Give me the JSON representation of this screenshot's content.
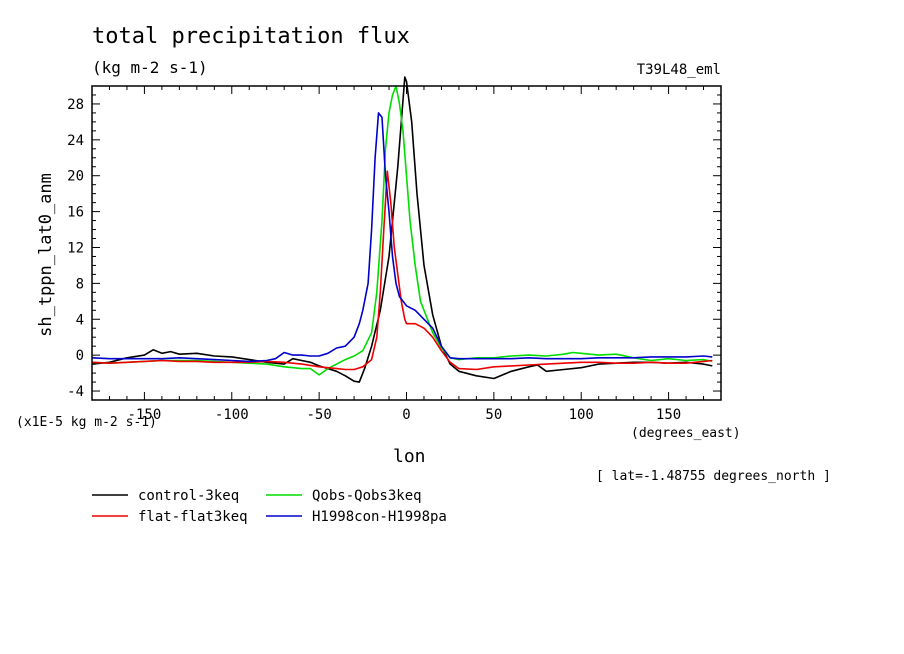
{
  "chart_data": {
    "type": "line",
    "title": "total precipitation flux",
    "subtitle": "(kg m-2 s-1)",
    "run_label": "T39L48_eml",
    "xlabel": "lon",
    "x_units": "(degrees_east)",
    "ylabel": "sh_tppn_lat0_anm",
    "y_scale_note": "(x1E-5 kg m-2 s-1)",
    "annotation": "[ lat=-1.48755 degrees_north ]",
    "xlim": [
      -180,
      180
    ],
    "ylim": [
      -5,
      30
    ],
    "xticks": [
      -150,
      -100,
      -50,
      0,
      50,
      100,
      150
    ],
    "xtick_labels": [
      "-150",
      "-100",
      "-50",
      "0",
      "50",
      "100",
      "150"
    ],
    "yticks": [
      -4,
      0,
      4,
      8,
      12,
      16,
      20,
      24,
      28
    ],
    "ytick_labels": [
      "-4",
      "0",
      "4",
      "8",
      "12",
      "16",
      "20",
      "24",
      "28"
    ],
    "grid": false,
    "legend_position": "bottom-left, below plot",
    "series": [
      {
        "name": "control-3keq",
        "color": "#000000",
        "x": [
          -180,
          -170,
          -160,
          -150,
          -145,
          -140,
          -135,
          -130,
          -120,
          -110,
          -100,
          -90,
          -80,
          -70,
          -65,
          -60,
          -55,
          -50,
          -45,
          -40,
          -35,
          -30,
          -27,
          -24,
          -20,
          -15,
          -10,
          -7,
          -5,
          -3,
          -1,
          0,
          3,
          6,
          10,
          15,
          20,
          25,
          30,
          40,
          50,
          60,
          70,
          75,
          80,
          90,
          100,
          110,
          120,
          130,
          140,
          150,
          160,
          170,
          175
        ],
        "y": [
          -1.0,
          -0.8,
          -0.3,
          0.0,
          0.6,
          0.2,
          0.4,
          0.1,
          0.2,
          -0.1,
          -0.2,
          -0.5,
          -0.8,
          -1.0,
          -0.4,
          -0.6,
          -0.8,
          -1.2,
          -1.5,
          -1.8,
          -2.3,
          -2.9,
          -3.0,
          -1.5,
          1.0,
          5.0,
          11.0,
          17.0,
          21.0,
          26.0,
          31.0,
          30.5,
          26.0,
          18.0,
          10.0,
          4.5,
          1.0,
          -1.0,
          -1.8,
          -2.3,
          -2.6,
          -1.8,
          -1.3,
          -1.1,
          -1.8,
          -1.6,
          -1.4,
          -1.0,
          -0.9,
          -0.8,
          -0.8,
          -0.9,
          -0.8,
          -1.0,
          -1.2
        ]
      },
      {
        "name": "Qobs-Qobs3keq",
        "color": "#00dd00",
        "x": [
          -180,
          -170,
          -160,
          -150,
          -140,
          -130,
          -120,
          -110,
          -100,
          -90,
          -80,
          -70,
          -60,
          -55,
          -50,
          -45,
          -40,
          -35,
          -30,
          -25,
          -20,
          -17,
          -14,
          -12,
          -10,
          -8,
          -6,
          -4,
          -2,
          0,
          2,
          5,
          8,
          12,
          15,
          20,
          25,
          30,
          40,
          50,
          60,
          70,
          80,
          90,
          95,
          100,
          110,
          120,
          130,
          140,
          150,
          160,
          170,
          175
        ],
        "y": [
          -0.8,
          -0.9,
          -0.8,
          -0.7,
          -0.6,
          -0.6,
          -0.6,
          -0.7,
          -0.8,
          -0.9,
          -1.0,
          -1.3,
          -1.5,
          -1.5,
          -2.2,
          -1.5,
          -1.0,
          -0.5,
          -0.1,
          0.5,
          2.5,
          7.0,
          15.0,
          23.0,
          27.0,
          29.0,
          30.0,
          28.0,
          25.0,
          20.0,
          15.0,
          10.0,
          6.0,
          4.0,
          2.5,
          0.8,
          -0.3,
          -0.5,
          -0.3,
          -0.3,
          -0.1,
          0.0,
          -0.1,
          0.1,
          0.3,
          0.2,
          0.0,
          0.1,
          -0.3,
          -0.6,
          -0.4,
          -0.6,
          -0.5,
          -0.7
        ]
      },
      {
        "name": "flat-flat3keq",
        "color": "#ee0000",
        "x": [
          -180,
          -170,
          -160,
          -150,
          -140,
          -130,
          -120,
          -110,
          -100,
          -90,
          -80,
          -70,
          -60,
          -50,
          -40,
          -35,
          -30,
          -25,
          -20,
          -17,
          -15,
          -13,
          -11,
          -9,
          -7,
          -5,
          -3,
          -1,
          0,
          5,
          10,
          15,
          20,
          25,
          30,
          40,
          50,
          60,
          70,
          80,
          90,
          100,
          110,
          120,
          130,
          140,
          150,
          160,
          170,
          175
        ],
        "y": [
          -0.8,
          -0.9,
          -0.8,
          -0.7,
          -0.6,
          -0.7,
          -0.7,
          -0.8,
          -0.8,
          -0.8,
          -0.7,
          -0.8,
          -1.0,
          -1.3,
          -1.5,
          -1.6,
          -1.6,
          -1.3,
          -0.5,
          2.0,
          7.0,
          14.0,
          20.5,
          17.0,
          12.0,
          9.0,
          6.0,
          4.0,
          3.5,
          3.5,
          3.0,
          2.0,
          0.5,
          -0.8,
          -1.5,
          -1.6,
          -1.3,
          -1.2,
          -1.1,
          -1.0,
          -0.9,
          -0.8,
          -0.8,
          -0.9,
          -0.9,
          -0.8,
          -0.9,
          -0.9,
          -0.7,
          -0.6
        ]
      },
      {
        "name": "H1998con-H1998pa",
        "color": "#0000cc",
        "x": [
          -180,
          -170,
          -160,
          -150,
          -140,
          -130,
          -120,
          -110,
          -100,
          -90,
          -80,
          -75,
          -70,
          -65,
          -60,
          -55,
          -50,
          -45,
          -40,
          -35,
          -30,
          -27,
          -25,
          -22,
          -20,
          -18,
          -16,
          -14,
          -12,
          -10,
          -8,
          -6,
          -4,
          -2,
          0,
          5,
          10,
          15,
          20,
          25,
          30,
          40,
          50,
          60,
          70,
          80,
          90,
          100,
          110,
          120,
          130,
          140,
          150,
          160,
          170,
          175
        ],
        "y": [
          -0.3,
          -0.4,
          -0.4,
          -0.4,
          -0.4,
          -0.3,
          -0.4,
          -0.5,
          -0.6,
          -0.7,
          -0.6,
          -0.4,
          0.3,
          0.0,
          0.0,
          -0.1,
          -0.1,
          0.2,
          0.8,
          1.0,
          2.0,
          3.5,
          5.0,
          8.0,
          14.0,
          22.0,
          27.0,
          26.5,
          20.0,
          16.0,
          11.0,
          8.0,
          6.5,
          6.0,
          5.5,
          5.0,
          4.0,
          3.0,
          1.0,
          -0.3,
          -0.4,
          -0.4,
          -0.4,
          -0.4,
          -0.3,
          -0.4,
          -0.4,
          -0.4,
          -0.3,
          -0.3,
          -0.3,
          -0.2,
          -0.2,
          -0.2,
          -0.1,
          -0.2
        ]
      }
    ]
  }
}
